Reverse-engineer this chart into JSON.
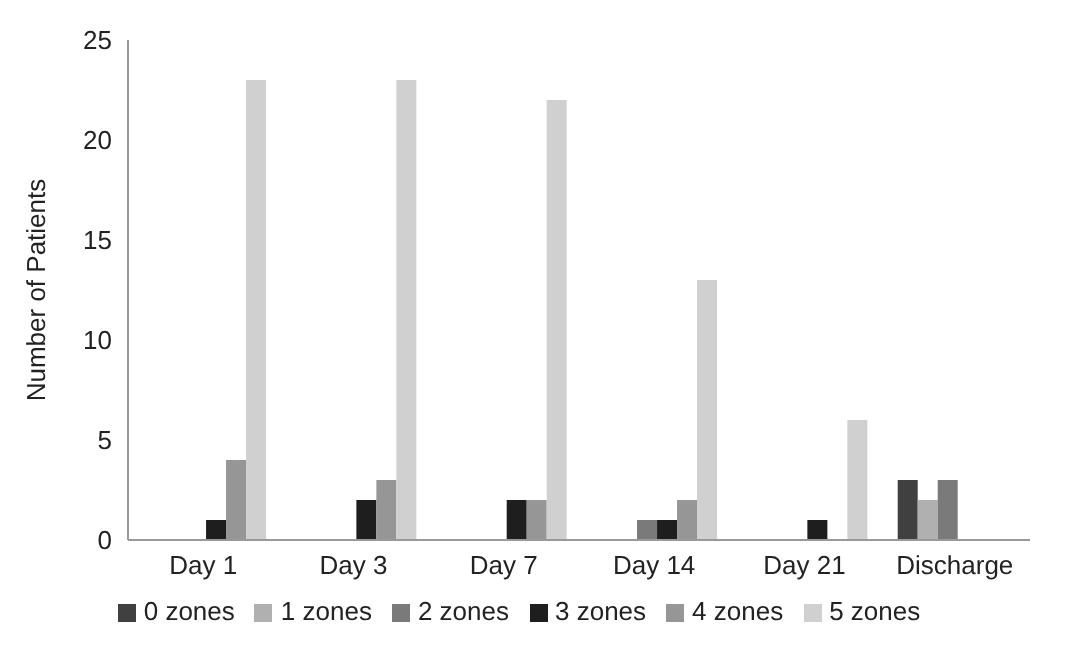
{
  "chart_data": {
    "type": "bar",
    "ylabel": "Number of Patients",
    "categories": [
      "Day 1",
      "Day 3",
      "Day 7",
      "Day 14",
      "Day 21",
      "Discharge"
    ],
    "series": [
      {
        "name": "0 zones",
        "color": "#404040",
        "values": [
          0,
          0,
          0,
          0,
          0,
          3
        ]
      },
      {
        "name": "1 zones",
        "color": "#b0b0b0",
        "values": [
          0,
          0,
          0,
          0,
          0,
          2
        ]
      },
      {
        "name": "2 zones",
        "color": "#7a7a7a",
        "values": [
          0,
          0,
          0,
          1,
          0,
          3
        ]
      },
      {
        "name": "3 zones",
        "color": "#1e1e1e",
        "values": [
          1,
          2,
          2,
          1,
          1,
          0
        ]
      },
      {
        "name": "4 zones",
        "color": "#969696",
        "values": [
          4,
          3,
          2,
          2,
          0,
          0
        ]
      },
      {
        "name": "5 zones",
        "color": "#d0d0d0",
        "values": [
          23,
          23,
          22,
          13,
          6,
          0
        ]
      }
    ],
    "ylim": [
      0,
      25
    ],
    "yticks": [
      0,
      5,
      10,
      15,
      20,
      25
    ],
    "grid": false,
    "legend": "bottom"
  }
}
